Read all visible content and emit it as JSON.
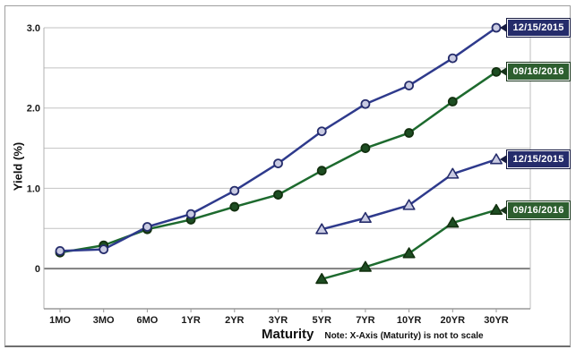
{
  "chart_data": {
    "type": "line",
    "xlabel": "Maturity",
    "ylabel": "Yield (%)",
    "note": "Note: X-Axis (Maturity) is not to scale",
    "categories": [
      "1MO",
      "3MO",
      "6MO",
      "1YR",
      "2YR",
      "3YR",
      "5YR",
      "7YR",
      "10YR",
      "20YR",
      "30YR"
    ],
    "ylim": [
      -0.5,
      3.0
    ],
    "grid_step": 0.5,
    "grid": true,
    "ytick_labels": [
      "3.0",
      "2.0",
      "1.0",
      "0"
    ],
    "ytick_values": [
      3.0,
      2.0,
      1.0,
      0
    ],
    "legend_position": "right-callout-labels",
    "series": [
      {
        "name": "12/15/2015",
        "marker": "circle",
        "line_color": "#2e3a8c",
        "marker_fill": "#c9cbe2",
        "marker_stroke": "#252c6b",
        "label_style": "navy",
        "values": [
          0.22,
          0.24,
          0.52,
          0.68,
          0.97,
          1.31,
          1.71,
          2.05,
          2.28,
          2.62,
          3.0
        ]
      },
      {
        "name": "09/16/2016",
        "marker": "circle",
        "line_color": "#1d6a2e",
        "marker_fill": "#1d4d22",
        "marker_stroke": "#12300f",
        "label_style": "green",
        "values": [
          0.2,
          0.29,
          0.49,
          0.61,
          0.77,
          0.92,
          1.22,
          1.5,
          1.69,
          2.08,
          2.45
        ]
      },
      {
        "name": "12/15/2015",
        "marker": "triangle",
        "line_color": "#2e3a8c",
        "marker_fill": "#c9cbe2",
        "marker_stroke": "#252c6b",
        "label_style": "navy",
        "values": [
          null,
          null,
          null,
          null,
          null,
          null,
          0.49,
          0.63,
          0.79,
          1.18,
          1.36
        ]
      },
      {
        "name": "09/16/2016",
        "marker": "triangle",
        "line_color": "#1d6a2e",
        "marker_fill": "#1d4d22",
        "marker_stroke": "#12300f",
        "label_style": "green",
        "values": [
          null,
          null,
          null,
          null,
          null,
          null,
          -0.13,
          0.02,
          0.19,
          0.57,
          0.73
        ]
      }
    ],
    "colors": {
      "gridline": "#c2c2c2",
      "zero_line": "#7f7f7f",
      "axis_line": "#999999",
      "tick_text": "#1a1a1a",
      "callout_navy": "#252c6b",
      "callout_green": "#2d5e2f"
    }
  }
}
